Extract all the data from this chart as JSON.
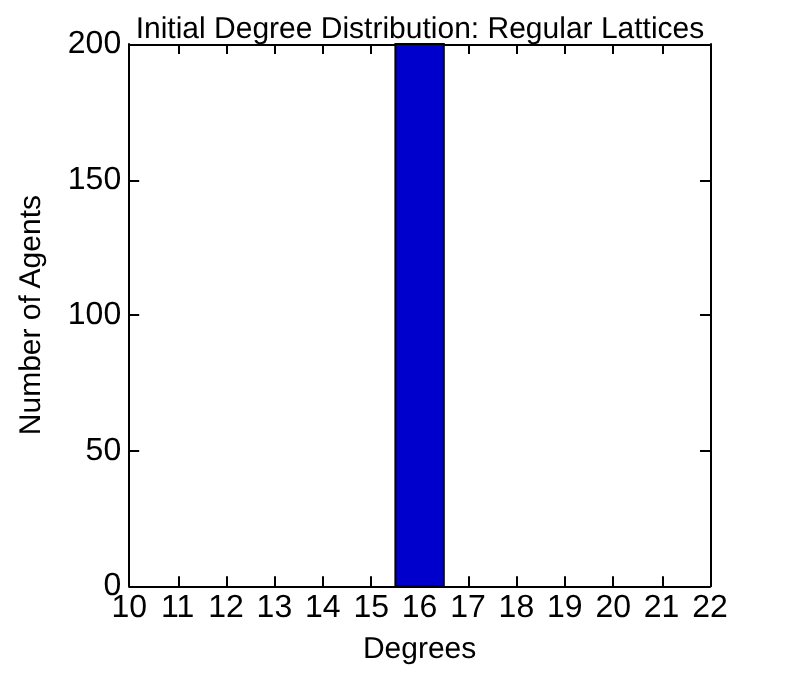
{
  "chart_data": {
    "type": "histogram",
    "title": "Initial Degree Distribution: Regular Lattices",
    "xlabel": "Degrees",
    "ylabel": "Number of Agents",
    "bins": [
      15.5,
      16.5
    ],
    "values": [
      200
    ],
    "color": "#0000cc",
    "xlim": [
      10,
      22
    ],
    "xticks": [
      10,
      11,
      12,
      13,
      14,
      15,
      16,
      17,
      18,
      19,
      20,
      21,
      22
    ],
    "ylim": [
      0,
      200
    ],
    "yticks": [
      0,
      50,
      100,
      150,
      200
    ],
    "grid": false
  }
}
